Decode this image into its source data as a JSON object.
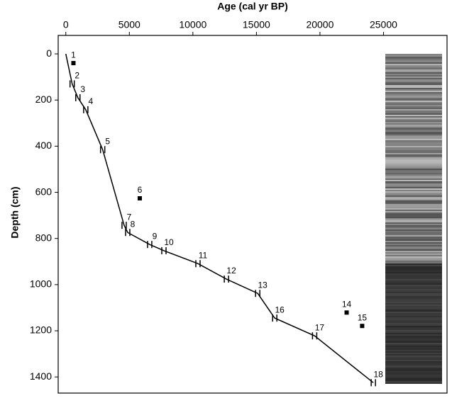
{
  "chart_data": {
    "type": "line",
    "xlabel": "Age (cal yr BP)",
    "ylabel": "Depth (cm)",
    "xaxis_position": "top",
    "y_inverted": true,
    "xlim": [
      -600,
      30000
    ],
    "xticks": [
      0,
      5000,
      10000,
      15000,
      20000,
      25000
    ],
    "ylim": [
      -80,
      1470
    ],
    "yticks": [
      0,
      200,
      400,
      600,
      800,
      1000,
      1200,
      1400
    ],
    "series": [
      {
        "color": "#000000",
        "x": [
          0,
          500,
          950,
          1570,
          2900,
          4590,
          4870,
          6600,
          7720,
          10400,
          12640,
          15100,
          16440,
          19580,
          24200
        ],
        "y": [
          0,
          130,
          190,
          242,
          415,
          743,
          774,
          826,
          853,
          909,
          976,
          1038,
          1145,
          1222,
          1425
        ],
        "labels": [
          null,
          "2",
          "3",
          "4",
          "5",
          "7",
          "8",
          "9",
          "10",
          "11",
          "12",
          "13",
          "16",
          "17",
          "18"
        ]
      },
      {
        "color": "#000000",
        "marker": "square",
        "x": [
          600,
          5820,
          22100,
          23320
        ],
        "y": [
          40,
          626,
          1121,
          1179
        ],
        "labels": [
          "1",
          "6",
          "14",
          "15"
        ]
      }
    ]
  }
}
